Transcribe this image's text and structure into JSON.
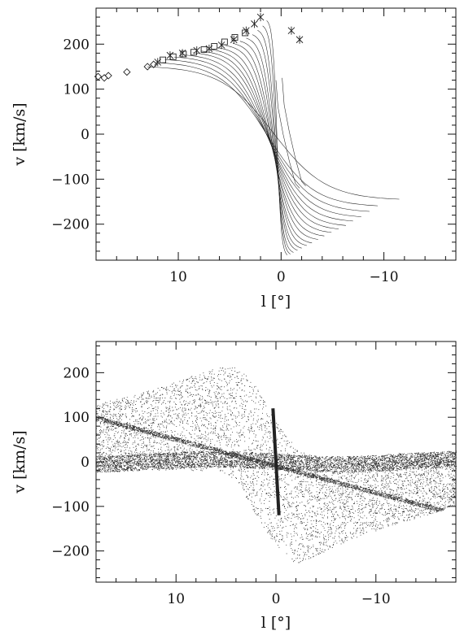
{
  "chart_data": [
    {
      "type": "line",
      "panel": "top",
      "xlabel": "l [°]",
      "ylabel": "v [km/s]",
      "xlim": [
        18,
        -17
      ],
      "ylim": [
        -280,
        280
      ],
      "xticks": [
        10,
        0,
        -10
      ],
      "xtick_labels": [
        "10",
        "0",
        "−10"
      ],
      "yticks": [
        200,
        100,
        0,
        -100,
        -200
      ],
      "ytick_labels": [
        "200",
        "100",
        "0",
        "−100",
        "−200"
      ],
      "curves": {
        "count": 17,
        "description_values": {
          "start_l": [
            13,
            12.2,
            11.3,
            10.4,
            9.5,
            8.6,
            7.8,
            7.0,
            6.2,
            5.4,
            4.7,
            4.0,
            3.4,
            2.8,
            2.3,
            1.8,
            1.4
          ],
          "start_v": [
            155,
            165,
            172,
            178,
            183,
            188,
            192,
            196,
            200,
            205,
            210,
            215,
            222,
            230,
            240,
            250,
            262
          ],
          "end_l": [
            -11.5,
            -9.4,
            -8.6,
            -7.8,
            -7.0,
            -6.3,
            -5.6,
            -4.9,
            -4.2,
            -3.6,
            -3.0,
            -2.5,
            -2.0,
            -1.6,
            -1.2,
            -0.9,
            -0.6
          ],
          "end_v": [
            -150,
            -165,
            -178,
            -190,
            -200,
            -210,
            -218,
            -226,
            -234,
            -242,
            -250,
            -256,
            -262,
            -267,
            -272,
            -276,
            -278
          ]
        }
      },
      "inner_loop": {
        "l": [
          0.5,
          0.3,
          -0.2,
          -0.8,
          -1.4,
          -1.8
        ],
        "v": [
          120,
          60,
          0,
          -60,
          -110,
          -120
        ]
      },
      "markers": {
        "diamond": {
          "l": [
            17.8,
            17.2,
            16.8,
            15,
            13,
            12.4
          ],
          "v": [
            128,
            125,
            130,
            138,
            150,
            155
          ]
        },
        "square": {
          "l": [
            11.5,
            10.5,
            9.5,
            8.5,
            7.5,
            6.5,
            5.5,
            4.5,
            3.5
          ],
          "v": [
            165,
            172,
            178,
            182,
            188,
            195,
            205,
            215,
            225
          ]
        },
        "cross": {
          "l": [
            12,
            10.8,
            9.6,
            8.2,
            7.0,
            5.8,
            4.6,
            3.4,
            2.6,
            2.0,
            -1.0,
            -1.8
          ],
          "v": [
            160,
            175,
            180,
            186,
            190,
            198,
            210,
            230,
            245,
            260,
            230,
            210
          ]
        }
      }
    },
    {
      "type": "scatter",
      "panel": "bottom",
      "xlabel": "l [°]",
      "ylabel": "v [km/s]",
      "xlim": [
        18,
        -18
      ],
      "ylim": [
        -270,
        270
      ],
      "xticks": [
        10,
        0,
        -10
      ],
      "xtick_labels": [
        "10",
        "0",
        "−10"
      ],
      "yticks": [
        200,
        100,
        0,
        -100,
        -200
      ],
      "ytick_labels": [
        "200",
        "100",
        "0",
        "−100",
        "−200"
      ],
      "point_cloud": {
        "envelope_upper_l": [
          18,
          14,
          10,
          6,
          4,
          2,
          0,
          -2,
          -4,
          -8,
          -12,
          -18
        ],
        "envelope_upper_v": [
          130,
          150,
          180,
          210,
          220,
          170,
          90,
          30,
          10,
          10,
          20,
          10
        ],
        "envelope_lower_l": [
          18,
          14,
          10,
          6,
          4,
          2,
          0,
          -2,
          -4,
          -8,
          -12,
          -18
        ],
        "envelope_lower_v": [
          -10,
          -20,
          -20,
          -20,
          -40,
          -120,
          -190,
          -230,
          -210,
          -170,
          -140,
          -100
        ],
        "dense_band_v": [
          0,
          25
        ],
        "central_bar": {
          "l": [
            0.3,
            -0.3
          ],
          "v": [
            120,
            -120
          ]
        }
      }
    }
  ]
}
